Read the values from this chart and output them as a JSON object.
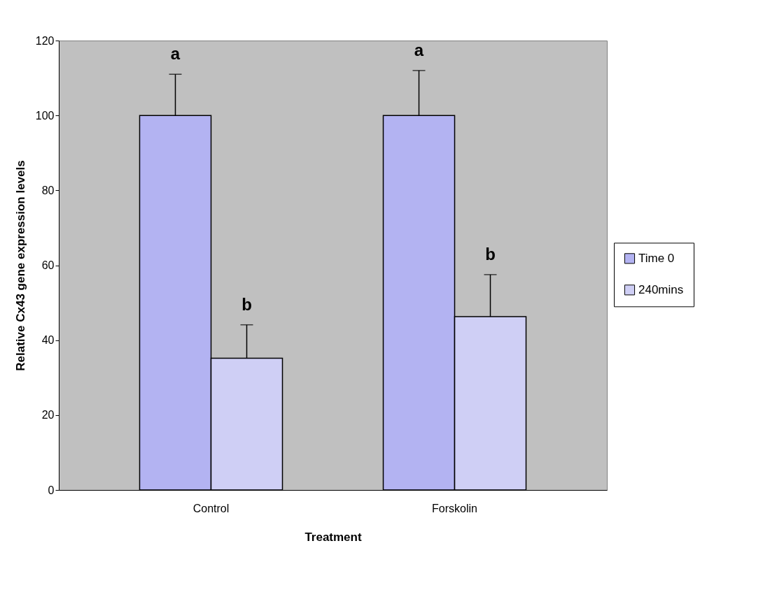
{
  "chart_data": {
    "type": "bar",
    "xlabel": "Treatment",
    "ylabel": "Relative Cx43 gene expression levels",
    "categories": [
      "Control",
      "Forskolin"
    ],
    "series": [
      {
        "name": "Time 0",
        "color": "#b3b3f2",
        "values": [
          100,
          100
        ],
        "errors": [
          [
            100,
            111
          ],
          [
            100,
            112
          ]
        ]
      },
      {
        "name": "240mins",
        "color": "#cfcff5",
        "values": [
          35.2,
          46.3
        ],
        "errors": [
          [
            35.2,
            44.1
          ],
          [
            46.3,
            57.5
          ]
        ]
      }
    ],
    "ylim": [
      0,
      120
    ],
    "yticks": [
      0,
      20,
      40,
      60,
      80,
      100,
      120
    ],
    "grid": false,
    "legend": "right",
    "annotations": [
      "a",
      "b",
      "a",
      "b"
    ]
  }
}
